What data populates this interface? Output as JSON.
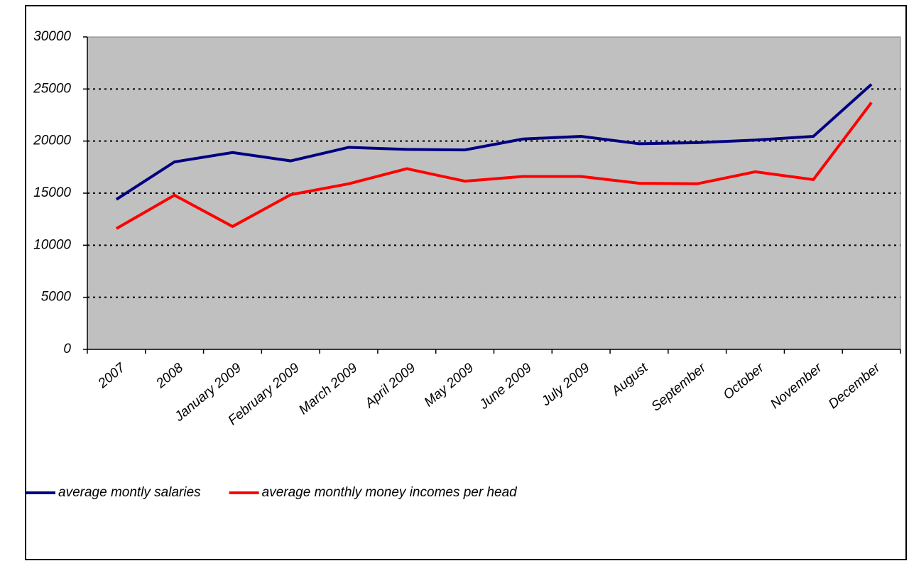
{
  "chart_data": {
    "type": "line",
    "categories": [
      "2007",
      "2008",
      "January 2009",
      "February 2009",
      "March 2009",
      "April 2009",
      "May 2009",
      "June 2009",
      "July 2009",
      "August",
      "September",
      "October",
      "November",
      "December"
    ],
    "series": [
      {
        "name": "average montly salaries",
        "color": "#000080",
        "values": [
          14400,
          18000,
          18900,
          18100,
          19400,
          19200,
          19150,
          20200,
          20450,
          19750,
          19850,
          20100,
          20450,
          25450
        ]
      },
      {
        "name": "average monthly money incomes per head",
        "color": "#ff0000",
        "values": [
          11600,
          14800,
          11800,
          14850,
          15900,
          17350,
          16150,
          16600,
          16600,
          15950,
          15900,
          17050,
          16300,
          23700
        ]
      }
    ],
    "ylim": [
      0,
      30000
    ],
    "yticks": [
      0,
      5000,
      10000,
      15000,
      20000,
      25000,
      30000
    ],
    "grid": true,
    "legend": "bottom"
  }
}
